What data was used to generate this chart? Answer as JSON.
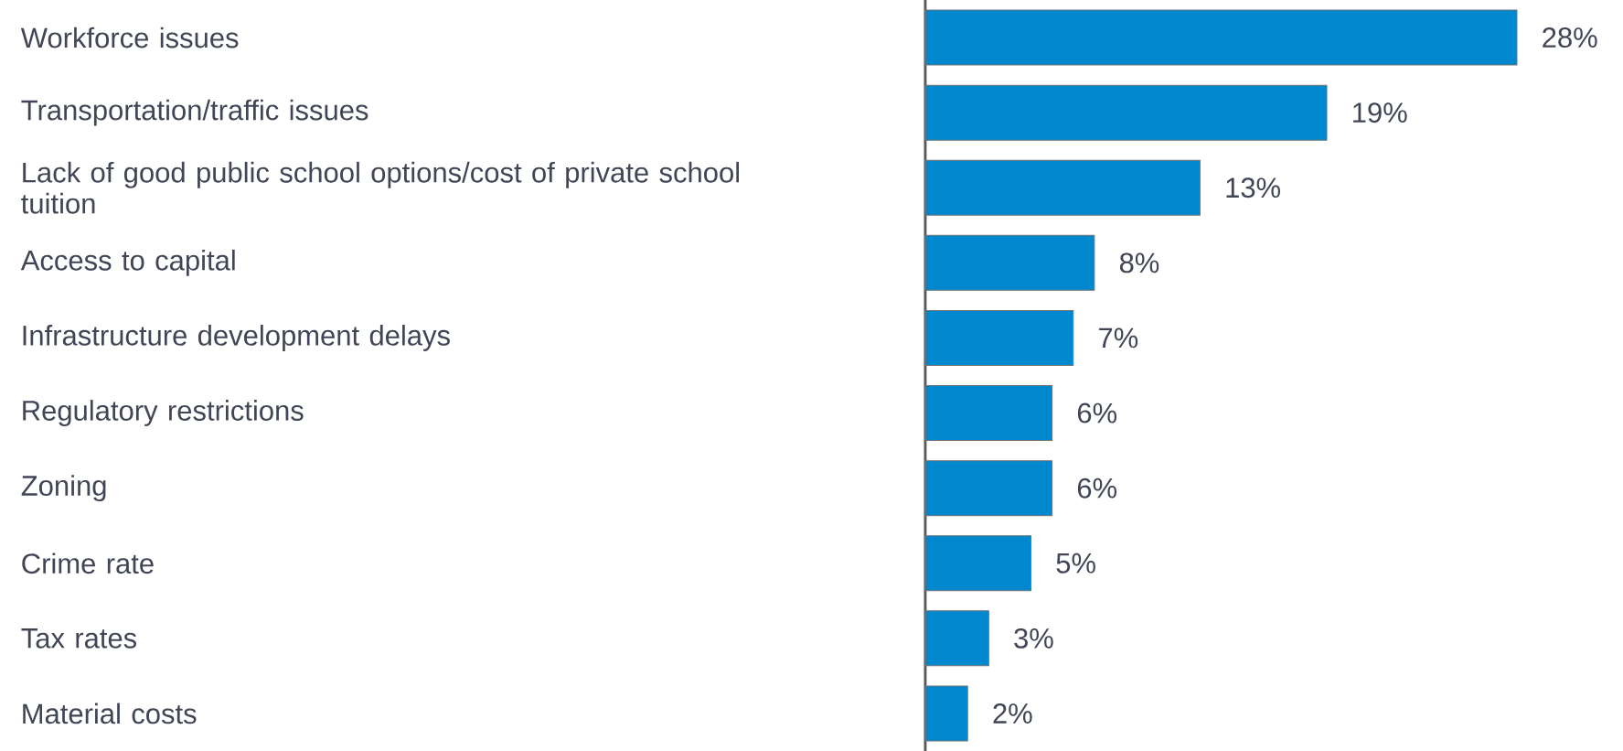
{
  "chart_data": {
    "type": "bar",
    "orientation": "horizontal",
    "categories": [
      "Workforce issues",
      "Transportation/traffic issues",
      "Lack of good public school options/cost of private school tuition",
      "Access to capital",
      "Infrastructure development delays",
      "Regulatory restrictions",
      "Zoning",
      "Crime rate",
      "Tax rates",
      "Material costs"
    ],
    "values": [
      28,
      19,
      13,
      8,
      7,
      6,
      6,
      5,
      3,
      2
    ],
    "value_labels": [
      "28%",
      "19%",
      "13%",
      "8%",
      "7%",
      "6%",
      "6%",
      "5%",
      "3%",
      "2%"
    ],
    "color": "#0088cf"
  }
}
